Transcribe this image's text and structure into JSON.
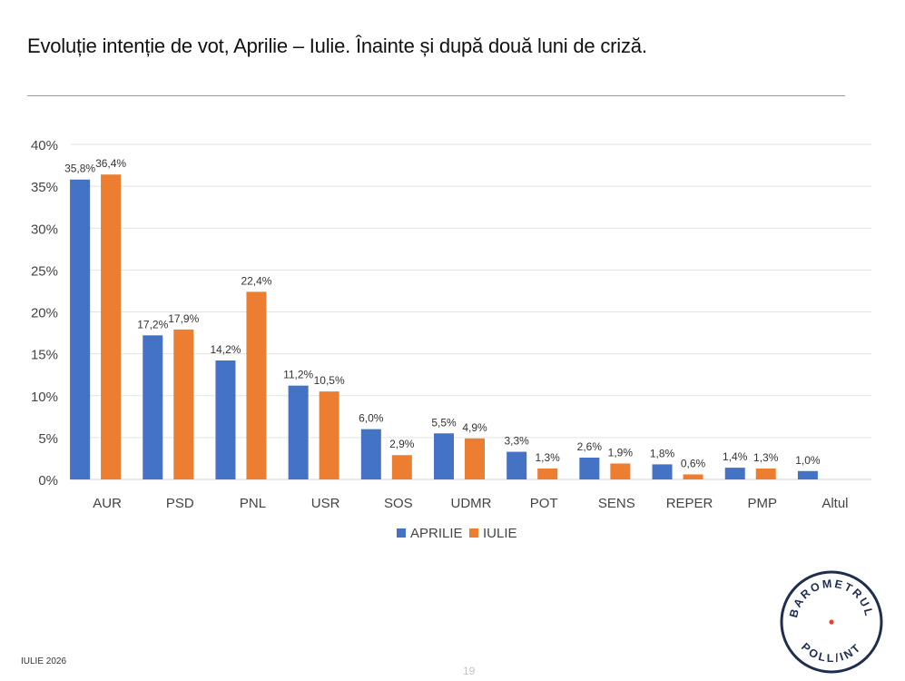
{
  "page": {
    "title": "Evoluție intenție de vot, Aprilie – Iulie. Înainte și după două luni de criză.",
    "footer": "IULIE 2026",
    "page_number": "19"
  },
  "logo": {
    "text_top": "BAROMETRUL",
    "text_bottom": "POLL/INT",
    "ring_color": "#1f2d4e",
    "dot_color": "#e8442e"
  },
  "colors": {
    "aprilie": "#4472c4",
    "iulie": "#ed7d31",
    "grid": "#e3e3e3",
    "axis": "#d0d0d0"
  },
  "chart_data": {
    "type": "bar",
    "title": "",
    "xlabel": "",
    "ylabel": "",
    "categories": [
      "AUR",
      "PSD",
      "PNL",
      "USR",
      "SOS",
      "UDMR",
      "POT",
      "SENS",
      "REPER",
      "PMP",
      "Altul"
    ],
    "series": [
      {
        "name": "APRILIE",
        "values": [
          35.8,
          17.2,
          14.2,
          11.2,
          6.0,
          5.5,
          3.3,
          2.6,
          1.8,
          1.4,
          1.0
        ],
        "labels": [
          "35,8%",
          "17,2%",
          "14,2%",
          "11,2%",
          "6,0%",
          "5,5%",
          "3,3%",
          "2,6%",
          "1,8%",
          "1,4%",
          "1,0%"
        ]
      },
      {
        "name": "IULIE",
        "values": [
          36.4,
          17.9,
          22.4,
          10.5,
          2.9,
          4.9,
          1.3,
          1.9,
          0.6,
          1.3,
          null
        ],
        "labels": [
          "36,4%",
          "17,9%",
          "22,4%",
          "10,5%",
          "2,9%",
          "4,9%",
          "1,3%",
          "1,9%",
          "0,6%",
          "1,3%",
          null
        ]
      }
    ],
    "ylim": [
      0,
      40
    ],
    "yticks": [
      0,
      5,
      10,
      15,
      20,
      25,
      30,
      35,
      40
    ],
    "ytick_labels": [
      "0%",
      "5%",
      "10%",
      "15%",
      "20%",
      "25%",
      "30%",
      "35%",
      "40%"
    ],
    "grid": true,
    "legend_position": "bottom-center"
  }
}
